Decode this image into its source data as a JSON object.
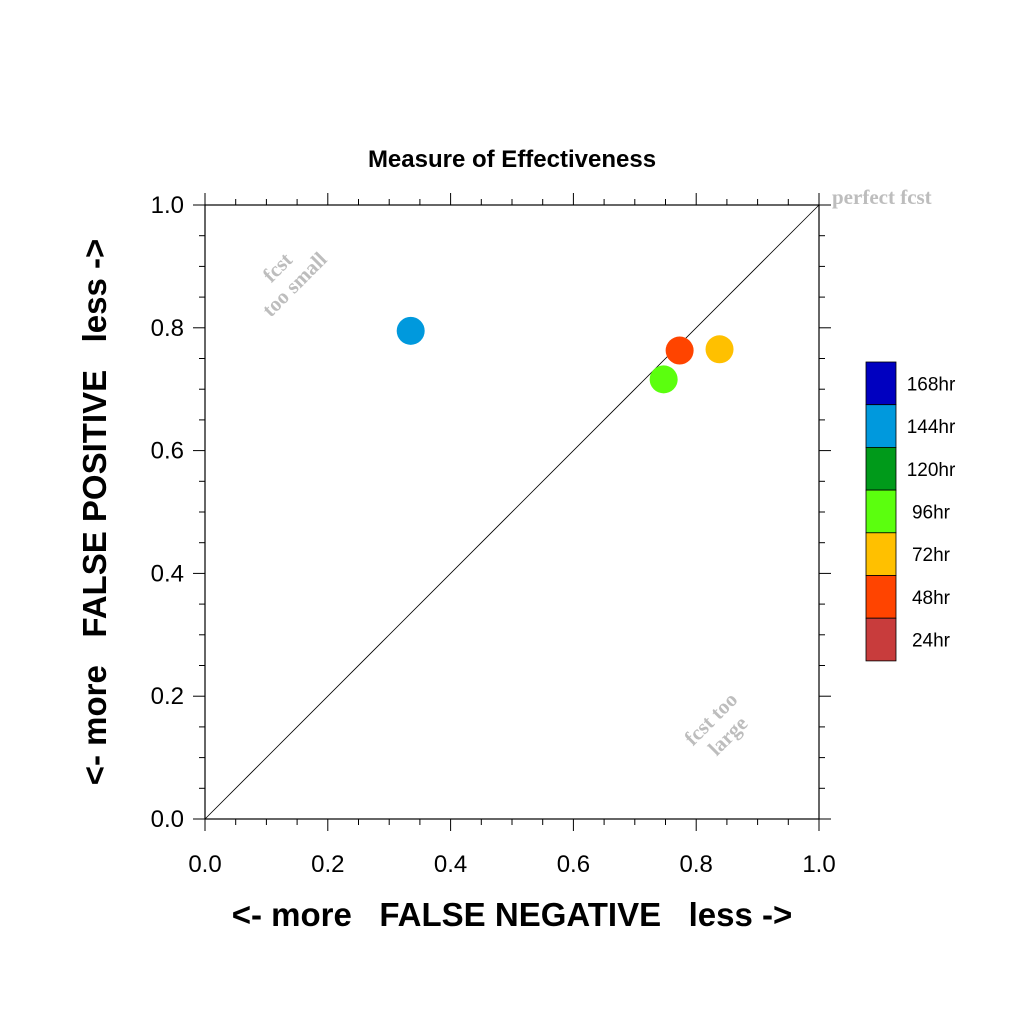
{
  "chart_data": {
    "type": "scatter",
    "title": "Measure of Effectiveness",
    "xlabel": "<- more   FALSE NEGATIVE   less ->",
    "ylabel": "<- more   FALSE POSITIVE   less ->",
    "xlim": [
      0,
      1
    ],
    "ylim": [
      0,
      1
    ],
    "xticks": [
      "0.0",
      "0.2",
      "0.4",
      "0.6",
      "0.8",
      "1.0"
    ],
    "yticks": [
      "0.0",
      "0.2",
      "0.4",
      "0.6",
      "0.8",
      "1.0"
    ],
    "grid": false,
    "reference_line": {
      "from": [
        0,
        0
      ],
      "to": [
        1,
        1
      ]
    },
    "annotations": {
      "perfect": "perfect fcst",
      "small_line1": "fcst",
      "small_line2": "too small",
      "large_line1": "fcst too",
      "large_line2": "large"
    },
    "legend_position": "right",
    "series": [
      {
        "name": "144hr",
        "color": "#0099dd",
        "x": 0.335,
        "y": 0.795
      },
      {
        "name": "48hr",
        "color": "#ff4400",
        "x": 0.773,
        "y": 0.763
      },
      {
        "name": "72hr",
        "color": "#ffc000",
        "x": 0.838,
        "y": 0.765
      },
      {
        "name": "96hr",
        "color": "#5bff0e",
        "x": 0.747,
        "y": 0.716
      }
    ],
    "legend": [
      {
        "label": "168hr",
        "color": "#0000c0"
      },
      {
        "label": "144hr",
        "color": "#0099dd"
      },
      {
        "label": "120hr",
        "color": "#009a1a"
      },
      {
        "label": "96hr",
        "color": "#5bff0e"
      },
      {
        "label": "72hr",
        "color": "#ffc000"
      },
      {
        "label": "48hr",
        "color": "#ff4400"
      },
      {
        "label": "24hr",
        "color": "#c83c3c"
      }
    ]
  }
}
